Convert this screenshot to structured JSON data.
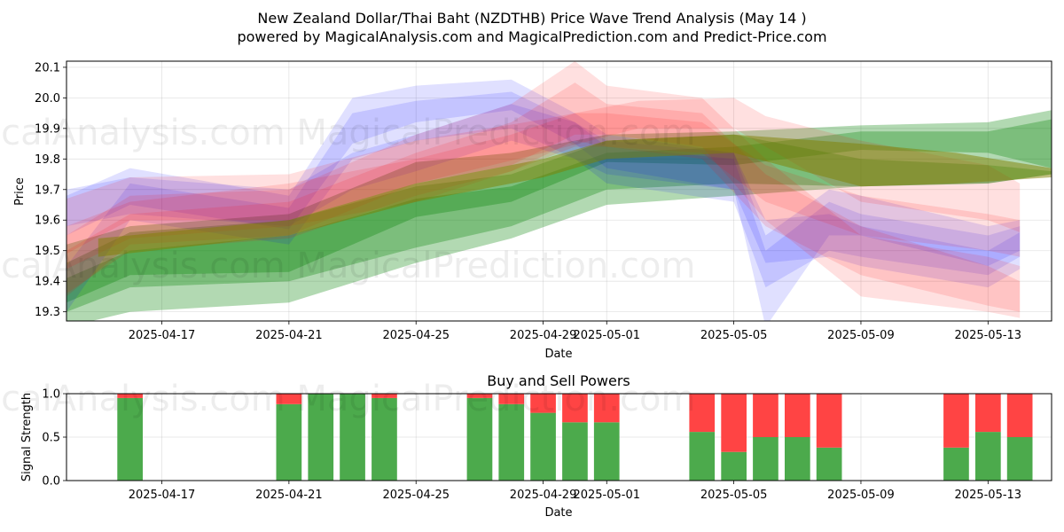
{
  "chart_data": [
    {
      "type": "area",
      "title": "New Zealand Dollar/Thai Baht (NZDTHB) Price Wave Trend Analysis (May 14 )",
      "subtitle": "powered by MagicalAnalysis.com and MagicalPrediction.com and Predict-Price.com",
      "xlabel": "Date",
      "ylabel": "Price",
      "xlim": [
        "2025-04-14",
        "2025-05-15"
      ],
      "ylim": [
        19.27,
        20.12
      ],
      "grid": true,
      "x_ticks": [
        "2025-04-17",
        "2025-04-21",
        "2025-04-25",
        "2025-04-29",
        "2025-05-01",
        "2025-05-05",
        "2025-05-09",
        "2025-05-13"
      ],
      "y_ticks": [
        "19.3",
        "19.4",
        "19.5",
        "19.6",
        "19.7",
        "19.8",
        "19.9",
        "20.0",
        "20.1"
      ],
      "series": [
        {
          "color": "#008000",
          "x": [
            "2025-04-14",
            "2025-04-16",
            "2025-04-21",
            "2025-04-25",
            "2025-04-28",
            "2025-05-01",
            "2025-05-05",
            "2025-05-09",
            "2025-05-13",
            "2025-05-15"
          ],
          "upper": [
            19.52,
            19.58,
            19.62,
            19.79,
            19.82,
            19.88,
            19.89,
            19.91,
            19.92,
            19.96
          ],
          "lower": [
            19.33,
            19.42,
            19.43,
            19.61,
            19.66,
            19.79,
            19.78,
            19.83,
            19.82,
            19.77
          ]
        },
        {
          "color": "#008000",
          "x": [
            "2025-04-14",
            "2025-04-16",
            "2025-04-21",
            "2025-04-25",
            "2025-04-28",
            "2025-05-01",
            "2025-05-05",
            "2025-05-09",
            "2025-05-13",
            "2025-05-15"
          ],
          "upper": [
            19.41,
            19.5,
            19.55,
            19.67,
            19.71,
            19.82,
            19.84,
            19.89,
            19.89,
            19.93
          ],
          "lower": [
            19.25,
            19.3,
            19.33,
            19.46,
            19.54,
            19.65,
            19.68,
            19.71,
            19.72,
            19.75
          ]
        },
        {
          "color": "#008000",
          "x": [
            "2025-04-14",
            "2025-04-16",
            "2025-04-21",
            "2025-04-25",
            "2025-04-28",
            "2025-05-01",
            "2025-05-05",
            "2025-05-09",
            "2025-05-13",
            "2025-05-15"
          ],
          "upper": [
            19.46,
            19.56,
            19.6,
            19.71,
            19.75,
            19.86,
            19.88,
            19.8,
            19.78,
            19.76
          ],
          "lower": [
            19.3,
            19.38,
            19.4,
            19.51,
            19.58,
            19.7,
            19.72,
            19.71,
            19.72,
            19.75
          ]
        },
        {
          "color": "#0000ff",
          "x": [
            "2025-04-14",
            "2025-04-16",
            "2025-04-21",
            "2025-04-23",
            "2025-04-25",
            "2025-04-28",
            "2025-04-30",
            "2025-05-01",
            "2025-05-05",
            "2025-05-06",
            "2025-05-08",
            "2025-05-09",
            "2025-05-13",
            "2025-05-14"
          ],
          "upper": [
            19.68,
            19.77,
            19.68,
            20.0,
            20.04,
            20.06,
            19.95,
            19.88,
            19.82,
            19.55,
            19.7,
            19.68,
            19.58,
            19.6
          ],
          "lower": [
            19.55,
            19.65,
            19.57,
            19.85,
            19.92,
            19.96,
            19.85,
            19.77,
            19.7,
            19.25,
            19.55,
            19.55,
            19.45,
            19.5
          ]
        },
        {
          "color": "#0000ff",
          "x": [
            "2025-04-14",
            "2025-04-16",
            "2025-04-21",
            "2025-04-23",
            "2025-04-25",
            "2025-04-28",
            "2025-04-30",
            "2025-05-01",
            "2025-05-05",
            "2025-05-06",
            "2025-05-08",
            "2025-05-09",
            "2025-05-13",
            "2025-05-14"
          ],
          "upper": [
            19.45,
            19.72,
            19.64,
            19.95,
            19.99,
            20.02,
            19.92,
            19.84,
            19.8,
            19.5,
            19.66,
            19.62,
            19.55,
            19.58
          ],
          "lower": [
            19.3,
            19.6,
            19.52,
            19.8,
            19.86,
            19.9,
            19.8,
            19.72,
            19.66,
            19.38,
            19.5,
            19.48,
            19.42,
            19.48
          ]
        },
        {
          "color": "#0000ff",
          "x": [
            "2025-04-14",
            "2025-04-16",
            "2025-04-21",
            "2025-04-23",
            "2025-04-25",
            "2025-04-28",
            "2025-04-30",
            "2025-05-01",
            "2025-05-05",
            "2025-05-06",
            "2025-05-08",
            "2025-05-09",
            "2025-05-13",
            "2025-05-14"
          ],
          "upper": [
            19.7,
            19.74,
            19.7,
            19.82,
            19.88,
            19.98,
            19.92,
            19.86,
            19.82,
            19.6,
            19.62,
            19.58,
            19.5,
            19.56
          ],
          "lower": [
            19.58,
            19.62,
            19.58,
            19.7,
            19.76,
            19.86,
            19.8,
            19.75,
            19.7,
            19.46,
            19.48,
            19.45,
            19.38,
            19.44
          ]
        },
        {
          "color": "#ff0000",
          "x": [
            "2025-04-14",
            "2025-04-16",
            "2025-04-21",
            "2025-04-25",
            "2025-04-29",
            "2025-05-02",
            "2025-05-05",
            "2025-05-06",
            "2025-05-09",
            "2025-05-13",
            "2025-05-14"
          ],
          "upper": [
            19.67,
            19.74,
            19.75,
            19.86,
            19.93,
            19.99,
            20.0,
            19.94,
            19.86,
            19.78,
            19.72
          ],
          "lower": [
            19.49,
            19.6,
            19.6,
            19.72,
            19.82,
            19.9,
            19.9,
            19.84,
            19.66,
            19.6,
            19.56
          ]
        },
        {
          "color": "#ff0000",
          "x": [
            "2025-04-14",
            "2025-04-16",
            "2025-04-21",
            "2025-04-25",
            "2025-04-28",
            "2025-04-30",
            "2025-05-01",
            "2025-05-04",
            "2025-05-06",
            "2025-05-09",
            "2025-05-13",
            "2025-05-14"
          ],
          "upper": [
            19.55,
            19.68,
            19.7,
            19.88,
            19.98,
            20.12,
            20.04,
            20.0,
            19.8,
            19.55,
            19.48,
            19.45
          ],
          "lower": [
            19.35,
            19.52,
            19.55,
            19.72,
            19.78,
            19.88,
            19.88,
            19.84,
            19.6,
            19.35,
            19.3,
            19.28
          ]
        },
        {
          "color": "#ff0000",
          "x": [
            "2025-04-14",
            "2025-04-16",
            "2025-04-21",
            "2025-04-25",
            "2025-04-28",
            "2025-04-30",
            "2025-05-01",
            "2025-05-04",
            "2025-05-06",
            "2025-05-09",
            "2025-05-13",
            "2025-05-14"
          ],
          "upper": [
            19.5,
            19.62,
            19.66,
            19.82,
            19.92,
            20.05,
            19.98,
            19.95,
            19.75,
            19.58,
            19.45,
            19.4
          ],
          "lower": [
            19.36,
            19.5,
            19.54,
            19.68,
            19.76,
            19.86,
            19.84,
            19.8,
            19.58,
            19.42,
            19.32,
            19.3
          ]
        },
        {
          "color": "#ff0000",
          "x": [
            "2025-04-14",
            "2025-04-16",
            "2025-04-21",
            "2025-04-25",
            "2025-04-28",
            "2025-04-30",
            "2025-05-01",
            "2025-05-04",
            "2025-05-06",
            "2025-05-09",
            "2025-05-13",
            "2025-05-14"
          ],
          "upper": [
            19.58,
            19.66,
            19.72,
            19.8,
            19.88,
            19.95,
            19.95,
            19.92,
            19.78,
            19.68,
            19.62,
            19.6
          ],
          "lower": [
            19.44,
            19.54,
            19.58,
            19.66,
            19.76,
            19.84,
            19.84,
            19.82,
            19.66,
            19.55,
            19.5,
            19.48
          ]
        },
        {
          "color": "#808000",
          "x": [
            "2025-04-15",
            "2025-04-21",
            "2025-04-25",
            "2025-04-29",
            "2025-05-01",
            "2025-05-05",
            "2025-05-09",
            "2025-05-12",
            "2025-05-15"
          ],
          "upper": [
            19.54,
            19.6,
            19.72,
            19.8,
            19.86,
            19.88,
            19.85,
            19.82,
            19.77
          ],
          "lower": [
            19.48,
            19.55,
            19.66,
            19.74,
            19.8,
            19.82,
            19.71,
            19.72,
            19.74
          ]
        }
      ]
    },
    {
      "type": "bar",
      "title": "Buy and Sell Powers",
      "xlabel": "Date",
      "ylabel": "Signal Strength",
      "ylim": [
        0,
        1
      ],
      "grid": true,
      "x_ticks": [
        "2025-04-17",
        "2025-04-21",
        "2025-04-25",
        "2025-04-29",
        "2025-05-01",
        "2025-05-05",
        "2025-05-09",
        "2025-05-13"
      ],
      "y_ticks": [
        "0.0",
        "0.5",
        "1.0"
      ],
      "buy_color": "#4caa4c",
      "sell_color": "#ff4444",
      "dates": [
        "2025-04-16",
        "2025-04-21",
        "2025-04-22",
        "2025-04-23",
        "2025-04-24",
        "2025-04-27",
        "2025-04-28",
        "2025-04-29",
        "2025-04-30",
        "2025-05-01",
        "2025-05-04",
        "2025-05-05",
        "2025-05-06",
        "2025-05-07",
        "2025-05-08",
        "2025-05-12",
        "2025-05-13",
        "2025-05-14"
      ],
      "buy": [
        0.95,
        0.88,
        1.0,
        1.0,
        0.95,
        0.95,
        0.88,
        0.78,
        0.67,
        0.67,
        0.56,
        0.33,
        0.5,
        0.5,
        0.38,
        0.38,
        0.56,
        0.5
      ],
      "sell": [
        0.05,
        0.12,
        0.0,
        0.0,
        0.05,
        0.05,
        0.12,
        0.22,
        0.33,
        0.33,
        0.44,
        0.67,
        0.5,
        0.5,
        0.62,
        0.62,
        0.44,
        0.5
      ]
    }
  ],
  "watermark": "MagicalAnalysis.com    MagicalPrediction.com"
}
